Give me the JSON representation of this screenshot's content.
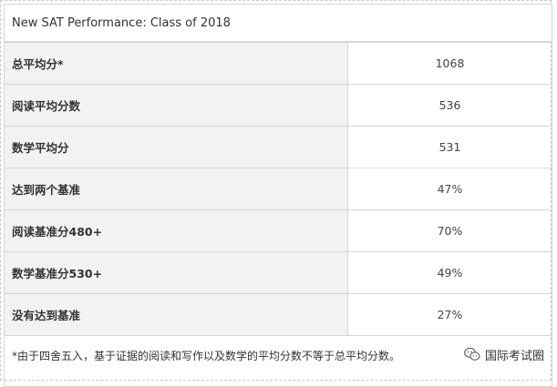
{
  "table": {
    "title": "New SAT Performance: Class of 2018",
    "rows": [
      {
        "label": "总平均分*",
        "value": "1068"
      },
      {
        "label": "阅读平均分数",
        "value": "536"
      },
      {
        "label": "数学平均分",
        "value": "531"
      },
      {
        "label": "达到两个基准",
        "value": "47%"
      },
      {
        "label": "阅读基准分480+",
        "value": "70%"
      },
      {
        "label": "数学基准分530+",
        "value": "49%"
      },
      {
        "label": "没有达到基准",
        "value": "27%"
      }
    ],
    "footnote": "*由于四舍五入，基于证据的阅读和写作以及数学的平均分数不等于总平均分数。"
  },
  "watermark": {
    "text": "国际考试圈",
    "icon": "wechat-icon"
  }
}
